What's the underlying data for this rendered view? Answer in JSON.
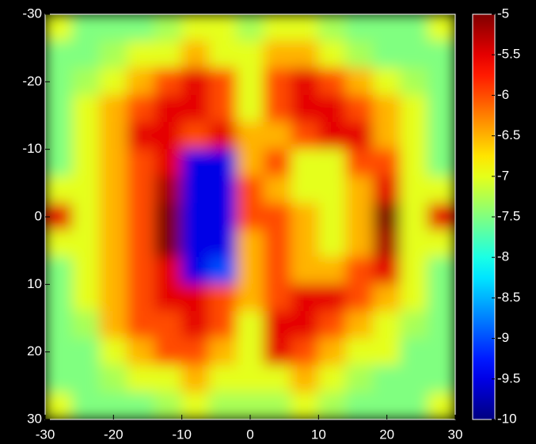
{
  "chart_data": {
    "type": "heatmap",
    "colormap": "jet",
    "x": [
      -28,
      -24,
      -20,
      -16,
      -12,
      -8,
      -4,
      0,
      4,
      8,
      12,
      16,
      20,
      24,
      28
    ],
    "y": [
      -28,
      -24,
      -20,
      -16,
      -12,
      -8,
      -4,
      0,
      4,
      8,
      12,
      16,
      20,
      24,
      28
    ],
    "z": [
      [
        -7,
        -7.5,
        -7.5,
        -7.5,
        -7.3,
        -7,
        -7,
        -7.3,
        -7,
        -7,
        -7.3,
        -7.5,
        -7.5,
        -7.5,
        -7
      ],
      [
        -7.5,
        -7.5,
        -7.3,
        -7,
        -7,
        -6.5,
        -7,
        -7,
        -6.5,
        -6.5,
        -7,
        -7.3,
        -7.5,
        -7.5,
        -7.5
      ],
      [
        -7.5,
        -7.3,
        -7,
        -6.5,
        -6,
        -5.5,
        -6,
        -7,
        -6,
        -5.5,
        -6,
        -6.5,
        -7,
        -7.3,
        -7.5
      ],
      [
        -7.5,
        -7,
        -6.5,
        -6,
        -5.5,
        -5.5,
        -6,
        -7,
        -6,
        -5.5,
        -5.5,
        -6,
        -6.5,
        -7,
        -7.5
      ],
      [
        -7.5,
        -7,
        -6.5,
        -5.5,
        -5.5,
        -6,
        -5.5,
        -6.5,
        -6.5,
        -6,
        -5.5,
        -5.5,
        -6.5,
        -7,
        -7.5
      ],
      [
        -7.5,
        -7,
        -6.5,
        -6,
        -5.5,
        -9.5,
        -9.5,
        -6.5,
        -6,
        -7,
        -7,
        -6,
        -6,
        -7,
        -7.5
      ],
      [
        -7,
        -7,
        -6.5,
        -6,
        -5.2,
        -9.5,
        -9.5,
        -6,
        -6.5,
        -7,
        -7,
        -6.5,
        -5.5,
        -7,
        -7
      ],
      [
        -5.5,
        -7,
        -6.5,
        -6,
        -5,
        -9.5,
        -9.5,
        -6,
        -6,
        -6.5,
        -7,
        -6.5,
        -5,
        -7,
        -5.5
      ],
      [
        -7,
        -7,
        -6.5,
        -6,
        -5,
        -9.5,
        -9.5,
        -6.5,
        -6,
        -6.5,
        -7,
        -6.5,
        -5.2,
        -7,
        -7
      ],
      [
        -7.5,
        -7,
        -6.5,
        -6,
        -5.5,
        -9.5,
        -9,
        -6.5,
        -6,
        -6.5,
        -6.5,
        -6,
        -5.5,
        -7,
        -7.5
      ],
      [
        -7.5,
        -7,
        -6.5,
        -6,
        -5.5,
        -5.5,
        -6,
        -6.5,
        -6,
        -5.5,
        -5.5,
        -6,
        -6.5,
        -7,
        -7.5
      ],
      [
        -7.5,
        -7.3,
        -6.5,
        -6,
        -6,
        -5.5,
        -6,
        -7,
        -5.5,
        -5.5,
        -6,
        -6.5,
        -7,
        -7.3,
        -7.5
      ],
      [
        -7.5,
        -7.5,
        -7,
        -6.5,
        -6,
        -6,
        -6.5,
        -7,
        -5.5,
        -6,
        -6.5,
        -7,
        -7,
        -7.5,
        -7.5
      ],
      [
        -7.5,
        -7.5,
        -7.3,
        -7,
        -7,
        -6.5,
        -7,
        -7,
        -7,
        -6.5,
        -7,
        -7.3,
        -7.5,
        -7.5,
        -7.5
      ],
      [
        -7,
        -7.5,
        -7.5,
        -7.5,
        -7.3,
        -7,
        -7.3,
        -7.3,
        -7.3,
        -7,
        -7.3,
        -7.5,
        -7.5,
        -7.5,
        -7
      ]
    ],
    "xlim": [
      -30,
      30
    ],
    "xticks": [
      -30,
      -20,
      -10,
      0,
      10,
      20,
      30
    ],
    "ylim": [
      30,
      -30
    ],
    "yticks": [
      -30,
      -20,
      -10,
      0,
      10,
      20,
      30
    ],
    "clim": [
      -10,
      -5
    ],
    "cticks": [
      -5,
      -5.5,
      -6,
      -6.5,
      -7,
      -7.5,
      -8,
      -8.5,
      -9,
      -9.5,
      -10
    ]
  }
}
